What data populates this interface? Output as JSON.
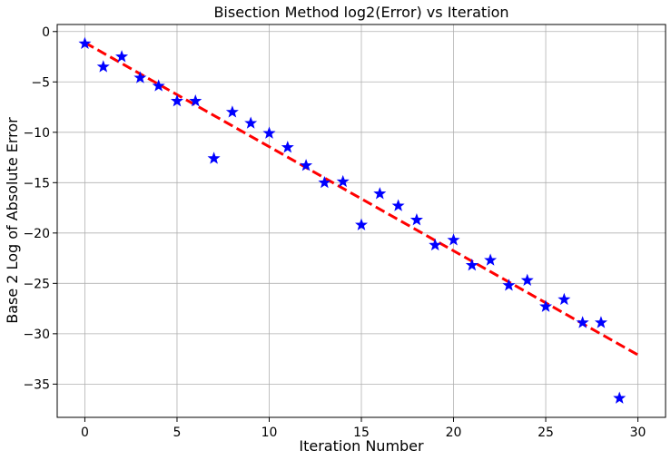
{
  "chart_data": {
    "type": "scatter",
    "title": "Bisection Method log2(Error) vs Iteration",
    "xlabel": "Iteration Number",
    "ylabel": "Base 2 Log of Absolute Error",
    "xlim": [
      -1.5,
      31.5
    ],
    "ylim": [
      -38.3,
      0.7
    ],
    "xticks": [
      0,
      5,
      10,
      15,
      20,
      25,
      30
    ],
    "yticks": [
      0,
      -5,
      -10,
      -15,
      -20,
      -25,
      -30,
      -35
    ],
    "grid": true,
    "legend": "none",
    "series": [
      {
        "marker": "star",
        "color": "#0000ff",
        "x": [
          0,
          1,
          2,
          3,
          4,
          5,
          6,
          7,
          8,
          9,
          10,
          11,
          12,
          13,
          14,
          15,
          16,
          17,
          18,
          19,
          20,
          21,
          22,
          23,
          24,
          25,
          26,
          27,
          28,
          29
        ],
        "y": [
          -1.2,
          -3.5,
          -2.5,
          -4.6,
          -5.4,
          -6.9,
          -6.9,
          -12.6,
          -8.0,
          -9.1,
          -10.1,
          -11.5,
          -13.3,
          -15.0,
          -14.9,
          -19.2,
          -16.1,
          -17.3,
          -18.7,
          -21.2,
          -20.7,
          -23.2,
          -22.7,
          -25.2,
          -24.7,
          -27.3,
          -26.6,
          -28.9,
          -28.9,
          -36.4
        ]
      },
      {
        "style": "dashed",
        "color": "#ff0000",
        "x": [
          0,
          30
        ],
        "y": [
          -1.1,
          -32.1
        ]
      }
    ]
  }
}
